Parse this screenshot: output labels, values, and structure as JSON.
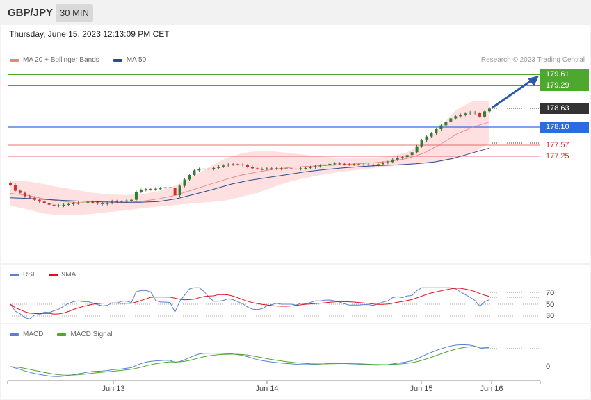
{
  "header": {
    "symbol": "GBP/JPY",
    "timeframe": "30 MIN"
  },
  "datetime": "Thursday, June 15, 2023 12:13:09 PM CET",
  "credit": "Research © 2023 Trading Central",
  "colors": {
    "up": "#2e7d32",
    "down": "#d32f2f",
    "ma20": "#f08080",
    "ma50": "#2a4b8d",
    "band": "#ffd6d6",
    "resistance": "#4ea72e",
    "support": "#2a6de0",
    "pivot": "#e04040",
    "rsi": "#5b7fd6",
    "rsi_ma": "#e01020",
    "macd": "#5b7fd6",
    "macd_signal": "#4ea72e"
  },
  "legend": {
    "ma20": "MA 20 + Bollinger Bands",
    "ma50": "MA 50"
  },
  "levels": {
    "r2": "179.61",
    "r1": "179.29",
    "last": "178.63",
    "pivot": "178.10",
    "s1": "177.57",
    "s2": "177.25"
  },
  "dates": [
    "Jun 13",
    "Jun 14",
    "Jun 15",
    "Jun 16"
  ],
  "rsi": {
    "legend_main": "RSI",
    "legend_ma": "9MA",
    "levels": [
      "70",
      "50",
      "30"
    ]
  },
  "macd": {
    "legend_main": "MACD",
    "legend_signal": "MACD Signal",
    "zero": "0"
  },
  "chart_data": {
    "type": "line",
    "title": "GBP/JPY 30 MIN",
    "ylim": [
      175.6,
      179.8
    ],
    "close": [
      176.45,
      176.28,
      176.22,
      176.12,
      176.08,
      176.02,
      175.97,
      175.93,
      175.88,
      175.86,
      175.85,
      175.88,
      175.9,
      175.92,
      175.93,
      175.94,
      175.96,
      175.95,
      175.92,
      175.9,
      175.93,
      175.98,
      175.95,
      175.97,
      176.0,
      176.02,
      176.25,
      176.3,
      176.33,
      176.32,
      176.34,
      176.35,
      176.38,
      176.36,
      176.15,
      176.42,
      176.6,
      176.73,
      176.86,
      176.9,
      176.91,
      176.9,
      176.93,
      176.97,
      177.0,
      177.03,
      177.04,
      177.03,
      177.01,
      176.96,
      176.92,
      176.9,
      176.9,
      176.92,
      176.91,
      176.92,
      176.9,
      176.92,
      176.91,
      176.9,
      176.92,
      176.93,
      176.95,
      176.98,
      177.0,
      177.03,
      177.05,
      177.06,
      177.05,
      177.04,
      177.03,
      177.04,
      177.03,
      177.03,
      177.02,
      177.01,
      177.04,
      177.08,
      177.1,
      177.17,
      177.22,
      177.24,
      177.3,
      177.38,
      177.55,
      177.72,
      177.83,
      177.92,
      178.04,
      178.15,
      178.26,
      178.35,
      178.41,
      178.45,
      178.49,
      178.52,
      178.5,
      178.4,
      178.55,
      178.63
    ],
    "levels": {
      "r2": 179.61,
      "r1": 179.29,
      "pivot": 178.1,
      "s1": 177.57,
      "s2": 177.25
    },
    "series": [
      {
        "name": "MA 20 + Bollinger Bands",
        "values": [
          176.2,
          176.15,
          176.05,
          175.98,
          175.94,
          175.92,
          175.92,
          175.94,
          175.98,
          176.05,
          176.15,
          176.3,
          176.45,
          176.6,
          176.73,
          176.82,
          176.9,
          176.95,
          176.98,
          177.0,
          177.02,
          177.05,
          177.08,
          177.12,
          177.2,
          177.35,
          177.6,
          177.9,
          178.1,
          178.25
        ]
      },
      {
        "name": "MA 50",
        "values": [
          176.08,
          176.06,
          176.03,
          176.0,
          175.98,
          175.96,
          175.95,
          175.95,
          175.97,
          176.05,
          176.18,
          176.32,
          176.47,
          176.58,
          176.66,
          176.74,
          176.82,
          176.88,
          176.93,
          176.97,
          177.0,
          177.02,
          177.05,
          177.1,
          177.2,
          177.35,
          177.5
        ]
      }
    ],
    "x_tick_labels": [
      "Jun 13",
      "Jun 14",
      "Jun 15",
      "Jun 16"
    ],
    "rsi_ylim": [
      30,
      70
    ],
    "macd_zero": 0
  }
}
